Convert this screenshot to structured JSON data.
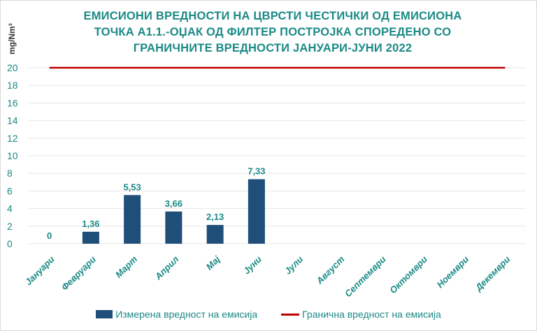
{
  "chart_data": {
    "type": "bar",
    "title": "ЕМИСИОНИ ВРЕДНОСТИ НА ЦВРСТИ ЧЕСТИЧКИ ОД ЕМИСИОНА ТОЧКА А1.1.-ОЏАК ОД ФИЛТЕР ПОСТРОЈКА СПОРЕДЕНО СО ГРАНИЧНИТЕ ВРЕДНОСТИ ЈАНУАРИ-ЈУНИ 2022",
    "ylabel": "mg/Nm³",
    "xlabel": "",
    "ylim": [
      0,
      20
    ],
    "yticks": [
      0,
      2,
      4,
      6,
      8,
      10,
      12,
      14,
      16,
      18,
      20
    ],
    "grid": true,
    "categories": [
      "Јануари",
      "Февруари",
      "Март",
      "Април",
      "Мај",
      "Јуни",
      "Јули",
      "Август",
      "Септември",
      "Октомври",
      "Ноември",
      "Декември"
    ],
    "series": [
      {
        "name": "Измерена вредност на емисија",
        "type": "bar",
        "color": "#1f4e79",
        "values": [
          0,
          1.36,
          5.53,
          3.66,
          2.13,
          7.33,
          null,
          null,
          null,
          null,
          null,
          null
        ],
        "labels": [
          "0",
          "1,36",
          "5,53",
          "3,66",
          "2,13",
          "7,33"
        ]
      },
      {
        "name": "Гранична вредност на емисија",
        "type": "line",
        "color": "#c00000",
        "values": [
          20,
          20,
          20,
          20,
          20,
          20,
          20,
          20,
          20,
          20,
          20,
          20
        ]
      }
    ],
    "legend_position": "bottom"
  }
}
